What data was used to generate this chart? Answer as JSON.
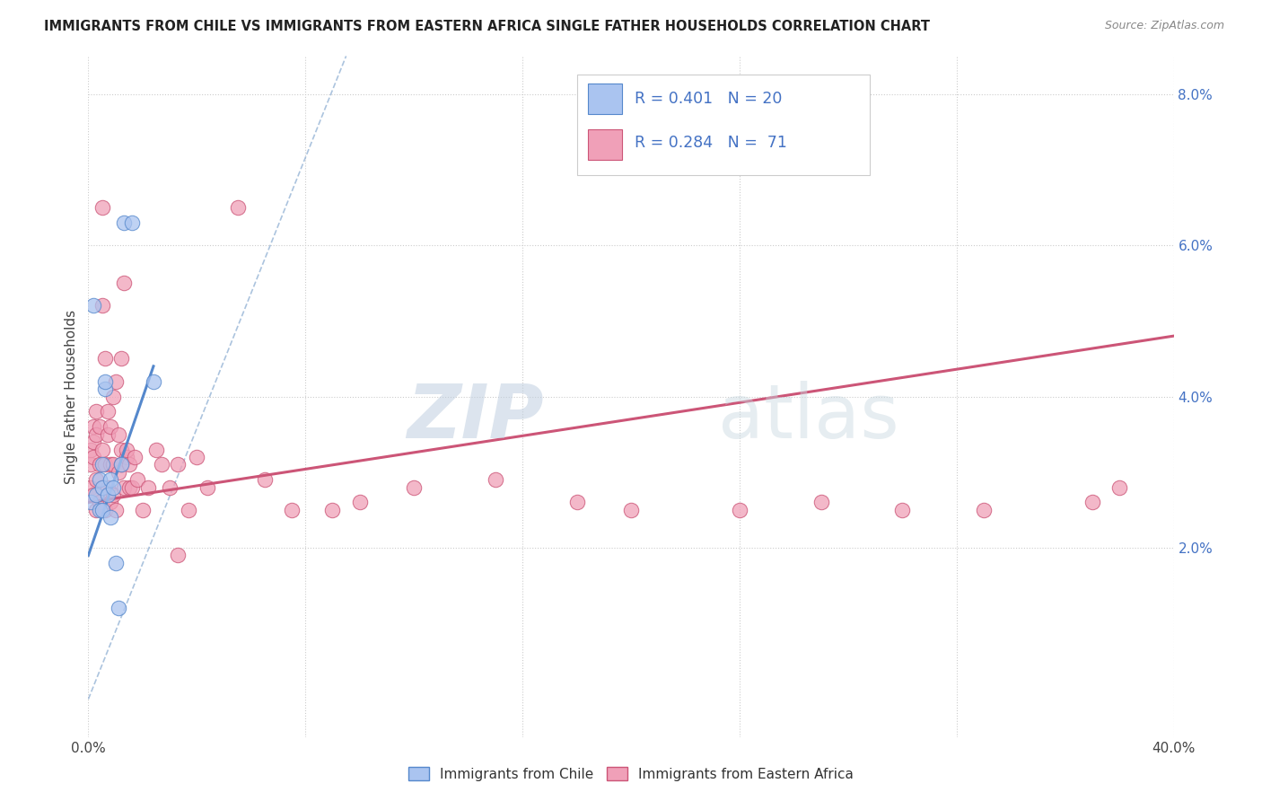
{
  "title": "IMMIGRANTS FROM CHILE VS IMMIGRANTS FROM EASTERN AFRICA SINGLE FATHER HOUSEHOLDS CORRELATION CHART",
  "source": "Source: ZipAtlas.com",
  "ylabel": "Single Father Households",
  "xlim": [
    0.0,
    0.4
  ],
  "ylim": [
    -0.005,
    0.085
  ],
  "x_ticks": [
    0.0,
    0.08,
    0.16,
    0.24,
    0.32,
    0.4
  ],
  "y_ticks_right": [
    0.02,
    0.04,
    0.06,
    0.08
  ],
  "y_tick_labels_right": [
    "2.0%",
    "4.0%",
    "6.0%",
    "8.0%"
  ],
  "color_chile": "#aac4f0",
  "color_chile_edge": "#5588cc",
  "color_africa": "#f0a0b8",
  "color_africa_edge": "#cc5577",
  "watermark_zip": "ZIP",
  "watermark_atlas": "atlas",
  "chile_scatter_x": [
    0.001,
    0.002,
    0.003,
    0.004,
    0.004,
    0.005,
    0.005,
    0.005,
    0.006,
    0.006,
    0.007,
    0.008,
    0.008,
    0.009,
    0.01,
    0.011,
    0.012,
    0.013,
    0.016,
    0.024
  ],
  "chile_scatter_y": [
    0.026,
    0.052,
    0.027,
    0.025,
    0.029,
    0.025,
    0.028,
    0.031,
    0.041,
    0.042,
    0.027,
    0.024,
    0.029,
    0.028,
    0.018,
    0.012,
    0.031,
    0.063,
    0.063,
    0.042
  ],
  "chile_line_x": [
    0.0,
    0.024
  ],
  "chile_line_y": [
    0.019,
    0.044
  ],
  "africa_scatter_x": [
    0.001,
    0.001,
    0.001,
    0.002,
    0.002,
    0.002,
    0.002,
    0.003,
    0.003,
    0.003,
    0.003,
    0.004,
    0.004,
    0.004,
    0.005,
    0.005,
    0.005,
    0.005,
    0.006,
    0.006,
    0.006,
    0.007,
    0.007,
    0.007,
    0.008,
    0.008,
    0.008,
    0.009,
    0.009,
    0.009,
    0.01,
    0.01,
    0.011,
    0.011,
    0.012,
    0.012,
    0.012,
    0.013,
    0.013,
    0.014,
    0.014,
    0.015,
    0.015,
    0.016,
    0.017,
    0.018,
    0.02,
    0.022,
    0.025,
    0.027,
    0.03,
    0.033,
    0.033,
    0.037,
    0.04,
    0.044,
    0.055,
    0.065,
    0.075,
    0.09,
    0.1,
    0.12,
    0.15,
    0.18,
    0.2,
    0.24,
    0.27,
    0.3,
    0.33,
    0.37,
    0.38
  ],
  "africa_scatter_y": [
    0.028,
    0.031,
    0.033,
    0.027,
    0.032,
    0.034,
    0.036,
    0.025,
    0.029,
    0.035,
    0.038,
    0.026,
    0.031,
    0.036,
    0.028,
    0.033,
    0.052,
    0.065,
    0.025,
    0.031,
    0.045,
    0.028,
    0.035,
    0.038,
    0.026,
    0.031,
    0.036,
    0.027,
    0.04,
    0.031,
    0.025,
    0.042,
    0.03,
    0.035,
    0.031,
    0.033,
    0.045,
    0.028,
    0.055,
    0.032,
    0.033,
    0.031,
    0.028,
    0.028,
    0.032,
    0.029,
    0.025,
    0.028,
    0.033,
    0.031,
    0.028,
    0.019,
    0.031,
    0.025,
    0.032,
    0.028,
    0.065,
    0.029,
    0.025,
    0.025,
    0.026,
    0.028,
    0.029,
    0.026,
    0.025,
    0.025,
    0.026,
    0.025,
    0.025,
    0.026,
    0.028
  ],
  "africa_line_x": [
    0.0,
    0.4
  ],
  "africa_line_y": [
    0.026,
    0.048
  ],
  "dashed_line_x": [
    0.0,
    0.095
  ],
  "dashed_line_y": [
    0.0,
    0.085
  ],
  "background_color": "#ffffff",
  "grid_color": "#cccccc"
}
